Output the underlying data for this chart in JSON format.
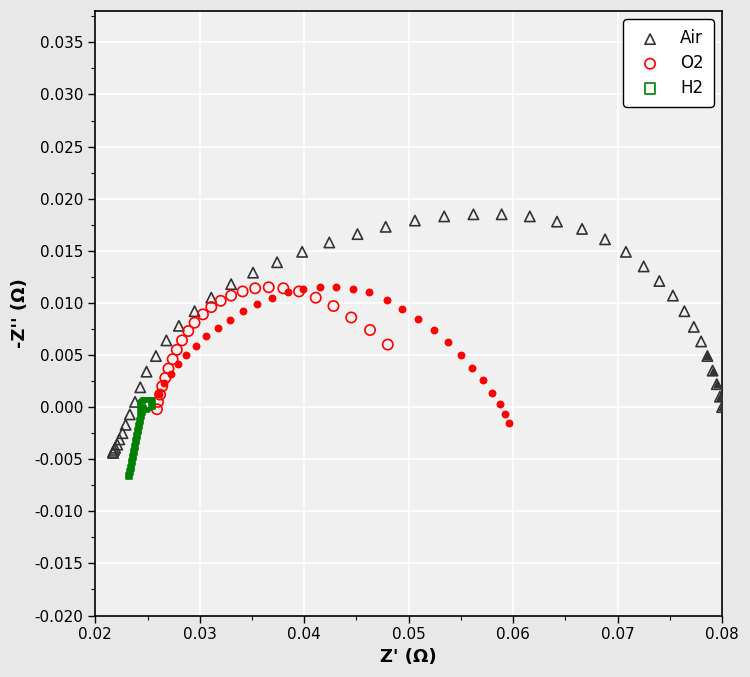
{
  "xlabel": "Z' (Ω)",
  "ylabel": "-Z'' (Ω)",
  "xlim": [
    0.02,
    0.08
  ],
  "ylim": [
    -0.02,
    0.038
  ],
  "xticks": [
    0.02,
    0.03,
    0.04,
    0.05,
    0.06,
    0.07,
    0.08
  ],
  "yticks": [
    -0.02,
    -0.015,
    -0.01,
    -0.005,
    0.0,
    0.005,
    0.01,
    0.015,
    0.02,
    0.025,
    0.03,
    0.035
  ],
  "background_color": "#e8e8e8",
  "plot_bg_color": "#f0f0f0",
  "grid_color": "#ffffff",
  "legend_loc": "upper right",
  "air_x": [
    0.08,
    0.0798,
    0.0795,
    0.0791,
    0.0786,
    0.078,
    0.0773,
    0.0764,
    0.0753,
    0.074,
    0.0725,
    0.0708,
    0.0688,
    0.0666,
    0.0642,
    0.0616,
    0.0589,
    0.0562,
    0.0534,
    0.0506,
    0.0478,
    0.0451,
    0.0424,
    0.0398,
    0.0374,
    0.0351,
    0.033,
    0.0311,
    0.0295,
    0.028,
    0.0268,
    0.0258,
    0.0249,
    0.0243,
    0.0238,
    0.0233,
    0.0229,
    0.0226,
    0.0223,
    0.0221,
    0.0219,
    0.0218,
    0.0217,
    0.0217
  ],
  "air_y": [
    0.0,
    0.001,
    0.0022,
    0.0035,
    0.0049,
    0.0063,
    0.0077,
    0.0092,
    0.0107,
    0.0121,
    0.0135,
    0.0149,
    0.0161,
    0.0171,
    0.0178,
    0.0183,
    0.0185,
    0.0185,
    0.0183,
    0.0179,
    0.0173,
    0.0166,
    0.0158,
    0.0149,
    0.0139,
    0.0129,
    0.0118,
    0.0105,
    0.0092,
    0.0078,
    0.0064,
    0.0049,
    0.0034,
    0.0019,
    0.0005,
    -0.0007,
    -0.0017,
    -0.0025,
    -0.0031,
    -0.0036,
    -0.0039,
    -0.0041,
    -0.0043,
    -0.0044
  ],
  "o2_x_open": [
    0.048,
    0.0463,
    0.0445,
    0.0428,
    0.0411,
    0.0395,
    0.038,
    0.0366,
    0.0353,
    0.0341,
    0.033,
    0.032,
    0.0311,
    0.0303,
    0.0295,
    0.0289,
    0.0283,
    0.0278,
    0.0274,
    0.027,
    0.0267,
    0.0264,
    0.0262,
    0.026,
    0.0259
  ],
  "o2_y_open": [
    0.006,
    0.0074,
    0.0086,
    0.0097,
    0.0105,
    0.0111,
    0.0114,
    0.0115,
    0.0114,
    0.0111,
    0.0107,
    0.0102,
    0.0096,
    0.0089,
    0.0081,
    0.0073,
    0.0064,
    0.0055,
    0.0046,
    0.0037,
    0.0028,
    0.002,
    0.0012,
    0.0005,
    -0.0002
  ],
  "o2_x_filled": [
    0.0596,
    0.0592,
    0.0587,
    0.058,
    0.0571,
    0.0561,
    0.055,
    0.0538,
    0.0524,
    0.0509,
    0.0494,
    0.0479,
    0.0462,
    0.0447,
    0.043,
    0.0415,
    0.0399,
    0.0384,
    0.0369,
    0.0355,
    0.0341,
    0.0329,
    0.0317,
    0.0306,
    0.0296,
    0.0287,
    0.0279,
    0.0272,
    0.0266,
    0.0261
  ],
  "o2_y_filled": [
    -0.0015,
    -0.0007,
    0.0003,
    0.0014,
    0.0026,
    0.0038,
    0.005,
    0.0062,
    0.0074,
    0.0085,
    0.0094,
    0.0103,
    0.011,
    0.0113,
    0.0115,
    0.0115,
    0.0113,
    0.011,
    0.0105,
    0.0099,
    0.0092,
    0.0084,
    0.0076,
    0.0068,
    0.0059,
    0.005,
    0.0041,
    0.0032,
    0.0023,
    0.0013
  ],
  "h2_x": [
    0.0252,
    0.0251,
    0.025,
    0.0249,
    0.0249,
    0.0248,
    0.0248,
    0.0247,
    0.0247,
    0.0246,
    0.0246,
    0.0245,
    0.0244,
    0.0243,
    0.0242,
    0.0241,
    0.024,
    0.0239,
    0.0238,
    0.0237,
    0.0236,
    0.0235,
    0.0234,
    0.0233,
    0.0232
  ],
  "h2_y": [
    0.0003,
    0.0004,
    0.0004,
    0.0004,
    0.0003,
    0.0003,
    0.0002,
    0.0002,
    0.0001,
    0.0,
    -0.0002,
    -0.0005,
    -0.0009,
    -0.0013,
    -0.0018,
    -0.0023,
    -0.0028,
    -0.0033,
    -0.0038,
    -0.0043,
    -0.0048,
    -0.0053,
    -0.0058,
    -0.0062,
    -0.0066
  ],
  "air_color": "#333333",
  "o2_color": "#ff0000",
  "h2_color": "#008000",
  "marker_size_open": 55,
  "marker_size_filled": 20,
  "lw": 1.2
}
